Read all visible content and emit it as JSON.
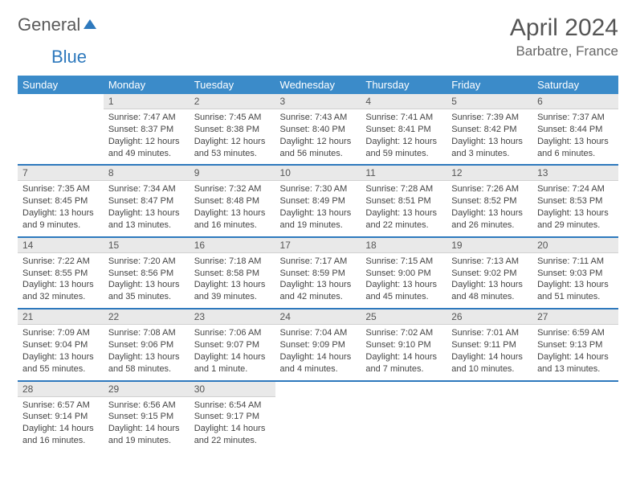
{
  "brand": {
    "part1": "General",
    "part2": "Blue"
  },
  "colors": {
    "header_bg": "#3b8bc9",
    "accent": "#2e79bd",
    "daynum_bg": "#e9e9e9",
    "text": "#444444",
    "title": "#555555"
  },
  "title": "April 2024",
  "location": "Barbatre, France",
  "weekdays": [
    "Sunday",
    "Monday",
    "Tuesday",
    "Wednesday",
    "Thursday",
    "Friday",
    "Saturday"
  ],
  "start_offset": 1,
  "days": [
    {
      "n": 1,
      "sr": "7:47 AM",
      "ss": "8:37 PM",
      "dl": "12 hours and 49 minutes."
    },
    {
      "n": 2,
      "sr": "7:45 AM",
      "ss": "8:38 PM",
      "dl": "12 hours and 53 minutes."
    },
    {
      "n": 3,
      "sr": "7:43 AM",
      "ss": "8:40 PM",
      "dl": "12 hours and 56 minutes."
    },
    {
      "n": 4,
      "sr": "7:41 AM",
      "ss": "8:41 PM",
      "dl": "12 hours and 59 minutes."
    },
    {
      "n": 5,
      "sr": "7:39 AM",
      "ss": "8:42 PM",
      "dl": "13 hours and 3 minutes."
    },
    {
      "n": 6,
      "sr": "7:37 AM",
      "ss": "8:44 PM",
      "dl": "13 hours and 6 minutes."
    },
    {
      "n": 7,
      "sr": "7:35 AM",
      "ss": "8:45 PM",
      "dl": "13 hours and 9 minutes."
    },
    {
      "n": 8,
      "sr": "7:34 AM",
      "ss": "8:47 PM",
      "dl": "13 hours and 13 minutes."
    },
    {
      "n": 9,
      "sr": "7:32 AM",
      "ss": "8:48 PM",
      "dl": "13 hours and 16 minutes."
    },
    {
      "n": 10,
      "sr": "7:30 AM",
      "ss": "8:49 PM",
      "dl": "13 hours and 19 minutes."
    },
    {
      "n": 11,
      "sr": "7:28 AM",
      "ss": "8:51 PM",
      "dl": "13 hours and 22 minutes."
    },
    {
      "n": 12,
      "sr": "7:26 AM",
      "ss": "8:52 PM",
      "dl": "13 hours and 26 minutes."
    },
    {
      "n": 13,
      "sr": "7:24 AM",
      "ss": "8:53 PM",
      "dl": "13 hours and 29 minutes."
    },
    {
      "n": 14,
      "sr": "7:22 AM",
      "ss": "8:55 PM",
      "dl": "13 hours and 32 minutes."
    },
    {
      "n": 15,
      "sr": "7:20 AM",
      "ss": "8:56 PM",
      "dl": "13 hours and 35 minutes."
    },
    {
      "n": 16,
      "sr": "7:18 AM",
      "ss": "8:58 PM",
      "dl": "13 hours and 39 minutes."
    },
    {
      "n": 17,
      "sr": "7:17 AM",
      "ss": "8:59 PM",
      "dl": "13 hours and 42 minutes."
    },
    {
      "n": 18,
      "sr": "7:15 AM",
      "ss": "9:00 PM",
      "dl": "13 hours and 45 minutes."
    },
    {
      "n": 19,
      "sr": "7:13 AM",
      "ss": "9:02 PM",
      "dl": "13 hours and 48 minutes."
    },
    {
      "n": 20,
      "sr": "7:11 AM",
      "ss": "9:03 PM",
      "dl": "13 hours and 51 minutes."
    },
    {
      "n": 21,
      "sr": "7:09 AM",
      "ss": "9:04 PM",
      "dl": "13 hours and 55 minutes."
    },
    {
      "n": 22,
      "sr": "7:08 AM",
      "ss": "9:06 PM",
      "dl": "13 hours and 58 minutes."
    },
    {
      "n": 23,
      "sr": "7:06 AM",
      "ss": "9:07 PM",
      "dl": "14 hours and 1 minute."
    },
    {
      "n": 24,
      "sr": "7:04 AM",
      "ss": "9:09 PM",
      "dl": "14 hours and 4 minutes."
    },
    {
      "n": 25,
      "sr": "7:02 AM",
      "ss": "9:10 PM",
      "dl": "14 hours and 7 minutes."
    },
    {
      "n": 26,
      "sr": "7:01 AM",
      "ss": "9:11 PM",
      "dl": "14 hours and 10 minutes."
    },
    {
      "n": 27,
      "sr": "6:59 AM",
      "ss": "9:13 PM",
      "dl": "14 hours and 13 minutes."
    },
    {
      "n": 28,
      "sr": "6:57 AM",
      "ss": "9:14 PM",
      "dl": "14 hours and 16 minutes."
    },
    {
      "n": 29,
      "sr": "6:56 AM",
      "ss": "9:15 PM",
      "dl": "14 hours and 19 minutes."
    },
    {
      "n": 30,
      "sr": "6:54 AM",
      "ss": "9:17 PM",
      "dl": "14 hours and 22 minutes."
    }
  ],
  "labels": {
    "sunrise": "Sunrise:",
    "sunset": "Sunset:",
    "daylight": "Daylight:"
  }
}
